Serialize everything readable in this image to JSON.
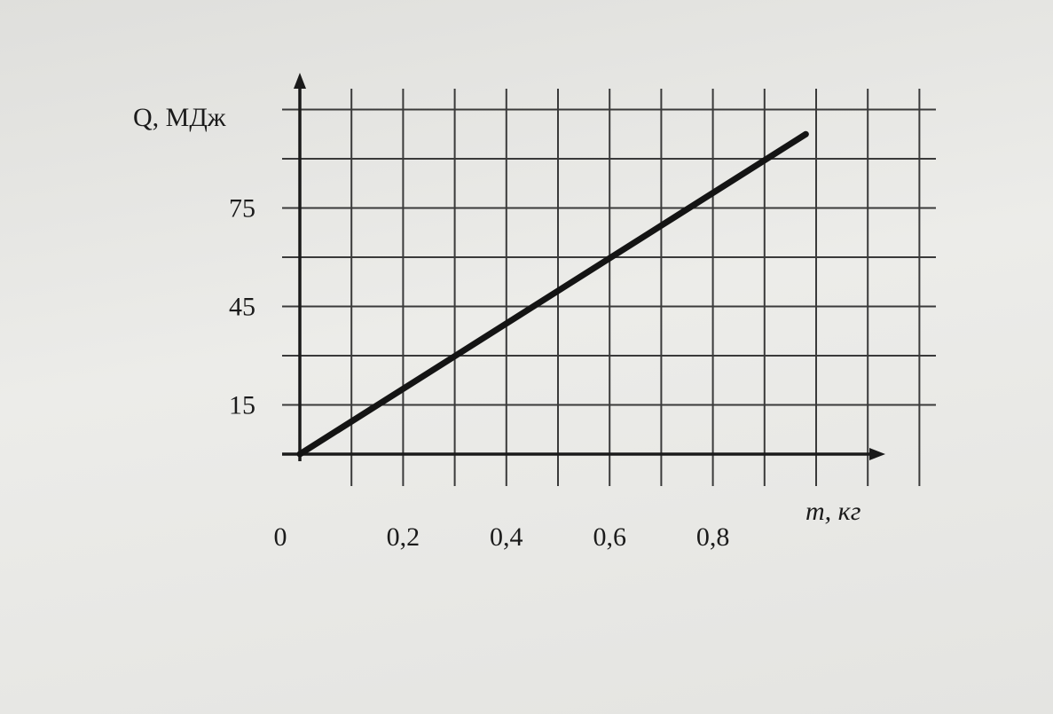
{
  "colors": {
    "ink": "#141414",
    "grid": "#3a3a3a",
    "paper": "#e9e9e7"
  },
  "chart_data": {
    "type": "line",
    "title": "",
    "xlabel": "m, кг",
    "ylabel": "Q, МДж",
    "x_tick_labels": [
      "0",
      "0,2",
      "0,4",
      "0,6",
      "0,8"
    ],
    "x_ticks": [
      0,
      0.2,
      0.4,
      0.6,
      0.8
    ],
    "y_tick_labels": [
      "15",
      "45",
      "75"
    ],
    "y_ticks": [
      15,
      45,
      75
    ],
    "xlim": [
      0,
      1.2
    ],
    "ylim": [
      0,
      105
    ],
    "grid": true,
    "series": [
      {
        "x": [
          0,
          0.98
        ],
        "y": [
          0,
          97.5
        ]
      }
    ]
  }
}
